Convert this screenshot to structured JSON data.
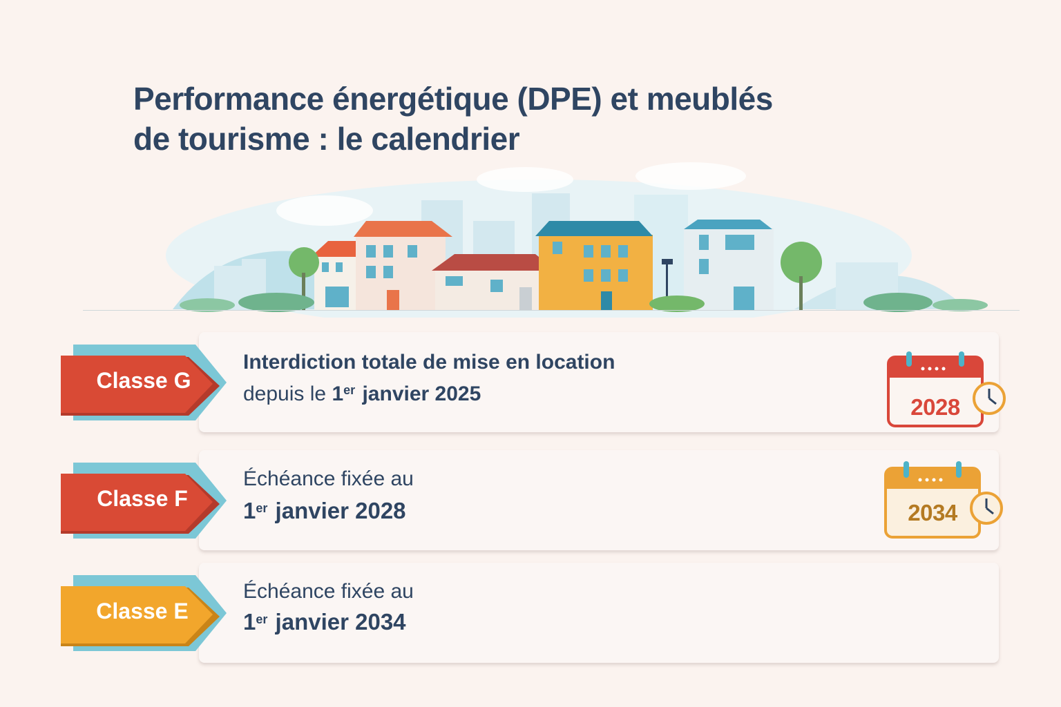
{
  "title": {
    "line1": "Performance énergétique (DPE) et meublés",
    "line2": "de tourisme : le calendrier"
  },
  "illustration": {
    "name": "street-of-houses",
    "colors": {
      "roof_orange": "#e9744a",
      "house_yellow": "#f2b143",
      "roof_teal": "#2e8aa7",
      "tree_green": "#74b86a",
      "sky_blue": "#b6dce8"
    }
  },
  "rows": [
    {
      "badge_label": "Classe G",
      "badge_color": "#d94a35",
      "line1": "Interdiction totale de mise en location",
      "line2_prefix": "depuis le ",
      "line2_day": "1",
      "line2_sup": "er",
      "line2_date": " janvier 2025",
      "calendar": {
        "year": "2028",
        "color": "#d9473a",
        "icon": "calendar-clock-icon"
      }
    },
    {
      "badge_label": "Classe F",
      "badge_color": "#d94a35",
      "line1": "Échéance fixée au",
      "line2_day": "1",
      "line2_sup": "er",
      "line2_date": " janvier 2028",
      "calendar": {
        "year": "2034",
        "color": "#eba236",
        "icon": "calendar-clock-icon"
      }
    },
    {
      "badge_label": "Classe E",
      "badge_color": "#f2a62c",
      "line1": "Échéance fixée au",
      "line2_day": "1",
      "line2_sup": "er",
      "line2_date": " janvier 2034"
    }
  ],
  "accent_colors": {
    "teal_ribbon": "#7cc7d6",
    "navy_text": "#2f4562"
  }
}
